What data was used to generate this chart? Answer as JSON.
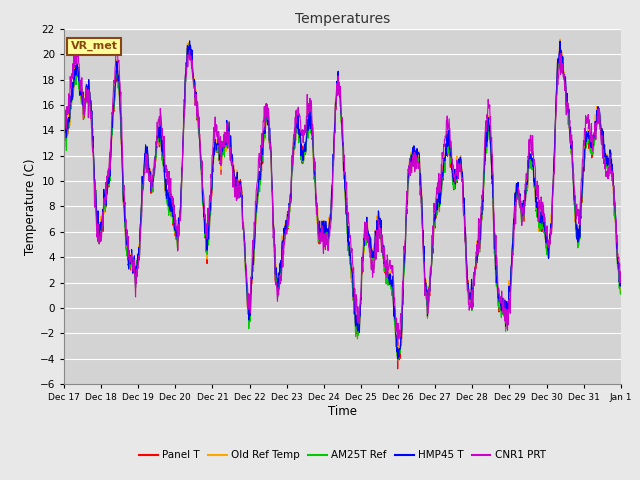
{
  "title": "Temperatures",
  "xlabel": "Time",
  "ylabel": "Temperature (C)",
  "ylim": [
    -6,
    22
  ],
  "yticks": [
    -6,
    -4,
    -2,
    0,
    2,
    4,
    6,
    8,
    10,
    12,
    14,
    16,
    18,
    20,
    22
  ],
  "series": {
    "Panel T": {
      "color": "#ff0000",
      "lw": 0.8
    },
    "Old Ref Temp": {
      "color": "#ffa500",
      "lw": 0.8
    },
    "AM25T Ref": {
      "color": "#00cc00",
      "lw": 0.8
    },
    "HMP45 T": {
      "color": "#0000ff",
      "lw": 0.8
    },
    "CNR1 PRT": {
      "color": "#cc00cc",
      "lw": 0.8
    }
  },
  "annotation_text": "VR_met",
  "annotation_color": "#8b4513",
  "annotation_bg": "#ffff99",
  "fig_facecolor": "#e8e8e8",
  "ax_facecolor": "#d3d3d3",
  "grid_color": "#ffffff",
  "xtick_labels": [
    "Dec 17",
    "Dec 18",
    "Dec 19",
    "Dec 20",
    "Dec 21",
    "Dec 22",
    "Dec 23",
    "Dec 24",
    "Dec 25",
    "Dec 26",
    "Dec 27",
    "Dec 28",
    "Dec 29",
    "Dec 30",
    "Dec 31",
    "Jan 1"
  ],
  "n_days": 15,
  "pts_per_day": 96,
  "seed": 123
}
